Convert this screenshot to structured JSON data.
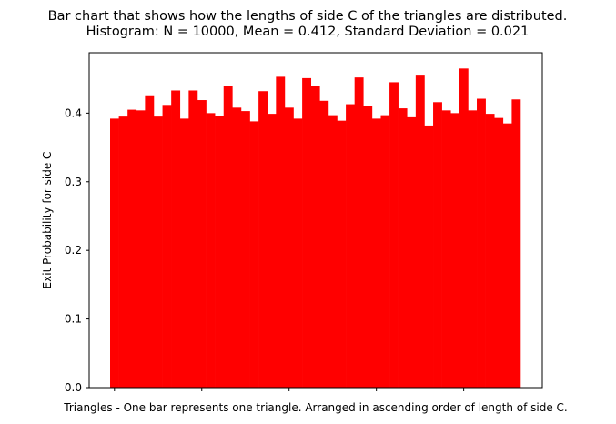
{
  "chart_data": {
    "type": "bar",
    "title": "Bar chart that shows how the lengths of side C of the triangles are distributed.",
    "subtitle": "Histogram: N = 10000, Mean = 0.412, Standard Deviation = 0.021",
    "xlabel": "Triangles - One bar represents one triangle. Arranged in ascending order of length of side C.",
    "ylabel": "Exit Probability for side C",
    "ylim": [
      0,
      0.488
    ],
    "yticks": [
      0.0,
      0.1,
      0.2,
      0.3,
      0.4
    ],
    "ytick_labels": [
      "0.0",
      "0.1",
      "0.2",
      "0.3",
      "0.4"
    ],
    "grid": false,
    "bar_color": "#ff0000",
    "values": [
      0.392,
      0.395,
      0.405,
      0.404,
      0.426,
      0.395,
      0.412,
      0.433,
      0.392,
      0.433,
      0.419,
      0.4,
      0.396,
      0.44,
      0.408,
      0.403,
      0.388,
      0.432,
      0.399,
      0.453,
      0.408,
      0.392,
      0.451,
      0.44,
      0.418,
      0.397,
      0.389,
      0.413,
      0.452,
      0.411,
      0.392,
      0.397,
      0.445,
      0.407,
      0.394,
      0.456,
      0.382,
      0.416,
      0.404,
      0.4,
      0.465,
      0.404,
      0.421,
      0.399,
      0.393,
      0.385,
      0.42
    ]
  }
}
